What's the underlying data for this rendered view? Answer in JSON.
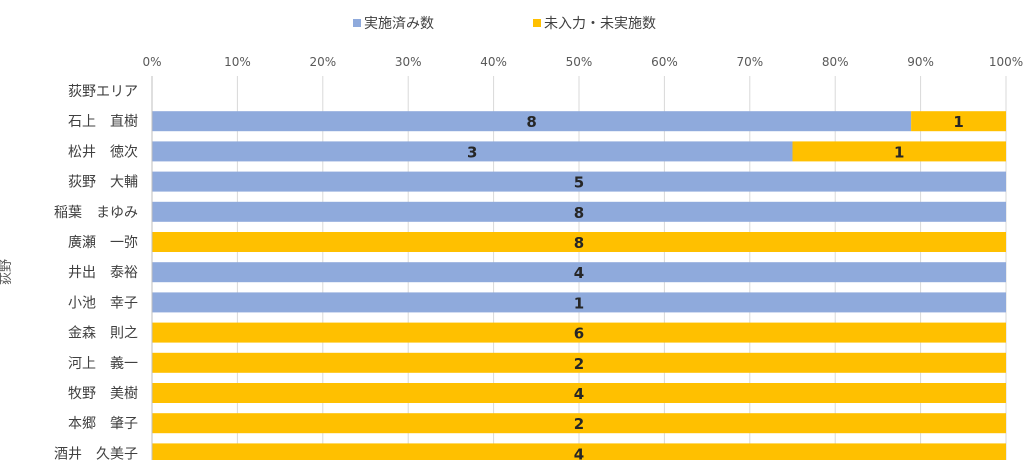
{
  "chart_data": {
    "type": "bar",
    "orientation": "horizontal",
    "stacking": "percent",
    "group_label": "荻野",
    "categories": [
      "荻野エリア",
      "石上　直樹",
      "松井　徳次",
      "荻野　大輔",
      "稲葉　まゆみ",
      "廣瀬　一弥",
      "井出　泰裕",
      "小池　幸子",
      "金森　則之",
      "河上　義一",
      "牧野　美樹",
      "本郷　肇子",
      "酒井　久美子"
    ],
    "series": [
      {
        "name": "実施済み数",
        "color": "#8faadc",
        "values": [
          null,
          8,
          3,
          5,
          8,
          null,
          4,
          1,
          null,
          null,
          null,
          null,
          null
        ]
      },
      {
        "name": "未入力・未実施数",
        "color": "#ffc000",
        "values": [
          null,
          1,
          1,
          null,
          null,
          8,
          null,
          null,
          6,
          2,
          4,
          2,
          4
        ]
      }
    ],
    "x_ticks": [
      "0%",
      "10%",
      "20%",
      "30%",
      "40%",
      "50%",
      "60%",
      "70%",
      "80%",
      "90%",
      "100%"
    ],
    "xlim": [
      0,
      100
    ],
    "legend_position": "top-center",
    "grid": true
  }
}
